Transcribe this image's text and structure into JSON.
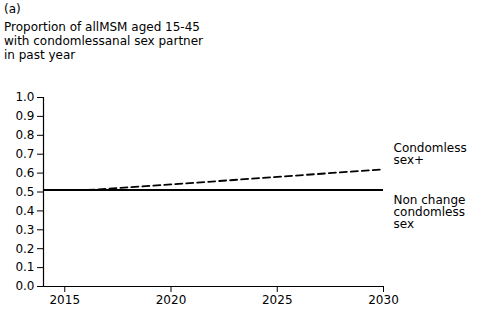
{
  "chart_data": {
    "type": "line",
    "annotations": [
      "(a)"
    ],
    "title": "Proportion of allMSM aged 15-45\nwith condomlessanal sex partner\nin past year",
    "x": [
      2014,
      2016,
      2020,
      2025,
      2030
    ],
    "series": [
      {
        "name": "Condomless sex+",
        "color": "#000000",
        "line_style": "dashed",
        "values": [
          0.51,
          0.51,
          0.54,
          0.58,
          0.62
        ]
      },
      {
        "name": "Non change condomless sex",
        "color": "#000000",
        "line_style": "solid",
        "values": [
          0.51,
          0.51,
          0.51,
          0.51,
          0.51
        ]
      }
    ],
    "xlim": [
      2014,
      2030
    ],
    "xticks": [
      2015,
      2020,
      2025,
      2030
    ],
    "ylim": [
      0,
      1
    ],
    "yticks": [
      0,
      0.1,
      0.2,
      0.3,
      0.4,
      0.5,
      0.6,
      0.7,
      0.8,
      0.9,
      1
    ],
    "grid": false
  }
}
